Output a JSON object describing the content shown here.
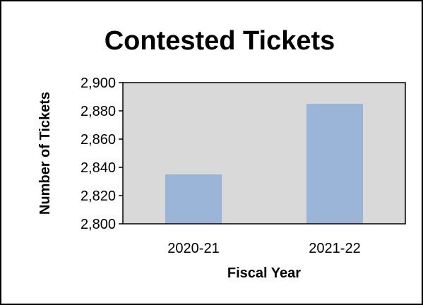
{
  "chart_data": {
    "type": "bar",
    "title": "Contested Tickets",
    "xlabel": "Fiscal Year",
    "ylabel": "Number of Tickets",
    "categories": [
      "2020-21",
      "2021-22"
    ],
    "values": [
      2835,
      2885
    ],
    "ylim": [
      2800,
      2900
    ],
    "yticks": [
      2800,
      2820,
      2840,
      2860,
      2880,
      2900
    ],
    "ytick_labels": [
      "2,800",
      "2,820",
      "2,840",
      "2,860",
      "2,880",
      "2,900"
    ],
    "grid": false,
    "legend": "none",
    "colors": {
      "bar": "#9bb5d9",
      "plot_background": "#d9d9d9",
      "border": "#000000"
    }
  }
}
